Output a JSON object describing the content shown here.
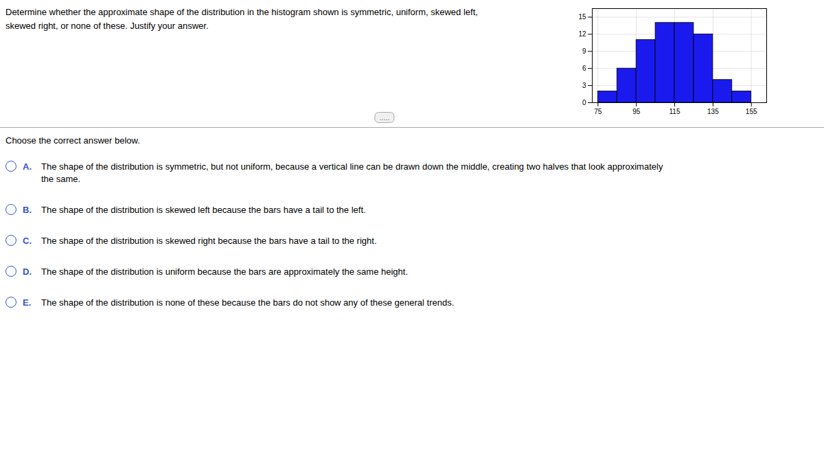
{
  "chart_data": {
    "type": "histogram",
    "title": "Determine whether the approximate shape of the distribution in the histogram shown is symmetric, uniform, skewed left,",
    "subtitle": "skewed right, or none of these. Justify your answer.",
    "bins": [
      75,
      85,
      95,
      105,
      115,
      125,
      135,
      145,
      155
    ],
    "counts": [
      2,
      6,
      11,
      14,
      14,
      12,
      4,
      2
    ],
    "color": "#1a1aee",
    "xlim": [
      72,
      163
    ],
    "ylim": [
      0,
      16.5
    ],
    "xticks": [
      75,
      95,
      115,
      135,
      155
    ],
    "yticks": [
      0,
      3,
      6,
      9,
      12,
      15
    ],
    "grid": true,
    "annotations": [
      ".....",
      "Choose the correct answer below.",
      "A.",
      "The shape of the distribution is symmetric, but not uniform, because a vertical line can be drawn down the middle, creating two halves that look approximately",
      "the same.",
      "B.",
      "The shape of the distribution is skewed left because the bars have a tail to the left.",
      "C.",
      "The shape of the distribution is skewed right because the bars have a tail to the right.",
      "D.",
      "The shape of the distribution is uniform because the bars are approximately the same height.",
      "E.",
      "The shape of the distribution is none of these because the bars do not show any of these general trends."
    ]
  }
}
